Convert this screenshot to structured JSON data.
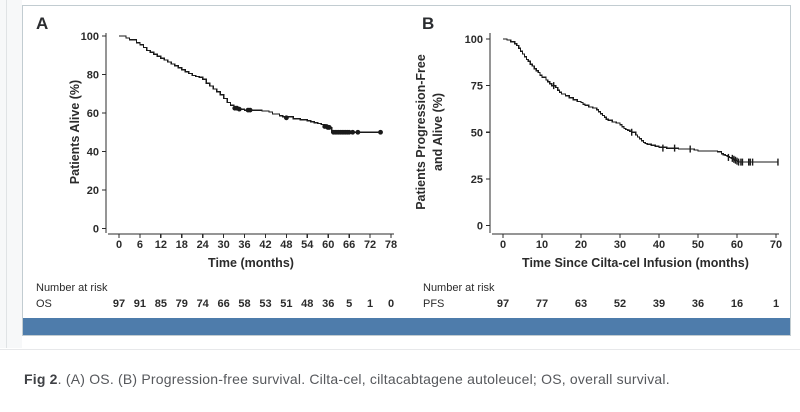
{
  "figure": {
    "caption_bold": "Fig 2",
    "caption_rest": ". (A) OS. (B) Progression-free survival. Cilta-cel, ciltacabtagene autoleucel; OS, overall survival.",
    "accent_bar_color": "#4e7cab",
    "curve_color": "#1a1a1a",
    "axis_color": "#2b2b2b"
  },
  "chart_data": [
    {
      "type": "line",
      "subtype": "kaplan-meier-step",
      "panel_label": "A",
      "xlabel": "Time (months)",
      "ylabel_lines": [
        "Patients Alive (%)"
      ],
      "xlim": [
        0,
        78
      ],
      "ylim": [
        0,
        100
      ],
      "xticks": [
        0,
        6,
        12,
        18,
        24,
        30,
        36,
        42,
        48,
        54,
        60,
        66,
        72,
        78
      ],
      "yticks": [
        0,
        20,
        40,
        60,
        80,
        100
      ],
      "grid": false,
      "legend": "none",
      "risk_header": "Number at risk",
      "risk_label": "OS",
      "risk_counts": [
        97,
        91,
        85,
        79,
        74,
        66,
        58,
        53,
        51,
        48,
        36,
        5,
        1,
        0
      ],
      "censor_style": "dot",
      "steps": [
        [
          0,
          100
        ],
        [
          2,
          99
        ],
        [
          3,
          98
        ],
        [
          5,
          96.5
        ],
        [
          6,
          95.5
        ],
        [
          7,
          94
        ],
        [
          8,
          92.5
        ],
        [
          9,
          91.5
        ],
        [
          10,
          90.5
        ],
        [
          11,
          89.5
        ],
        [
          12,
          88.5
        ],
        [
          13,
          87.5
        ],
        [
          14,
          86.5
        ],
        [
          15,
          85.5
        ],
        [
          16,
          84.5
        ],
        [
          17,
          83.5
        ],
        [
          18,
          82.5
        ],
        [
          19,
          81.5
        ],
        [
          20,
          80.5
        ],
        [
          21,
          79.5
        ],
        [
          22,
          79
        ],
        [
          23,
          78.5
        ],
        [
          24,
          77.5
        ],
        [
          25,
          75.5
        ],
        [
          26,
          74
        ],
        [
          27,
          72.5
        ],
        [
          28,
          71
        ],
        [
          29,
          69.5
        ],
        [
          30,
          67.5
        ],
        [
          31,
          65.5
        ],
        [
          32,
          64
        ],
        [
          33,
          62.5
        ],
        [
          34,
          62
        ],
        [
          36,
          61.5
        ],
        [
          41,
          61
        ],
        [
          43,
          60.5
        ],
        [
          44,
          59.5
        ],
        [
          46,
          58.5
        ],
        [
          47,
          58
        ],
        [
          50,
          57
        ],
        [
          52,
          56.5
        ],
        [
          54,
          56
        ],
        [
          55,
          55.5
        ],
        [
          56,
          55
        ],
        [
          57,
          54.5
        ],
        [
          58,
          54
        ],
        [
          59,
          53
        ],
        [
          60,
          52.5
        ],
        [
          61,
          50
        ],
        [
          75.5,
          50
        ]
      ],
      "censors": [
        [
          33.2,
          62.5
        ],
        [
          33.8,
          62.5
        ],
        [
          34.5,
          62
        ],
        [
          37,
          61.5
        ],
        [
          37.6,
          61.5
        ],
        [
          48,
          57.5
        ],
        [
          59,
          53
        ],
        [
          59.5,
          53
        ],
        [
          59.9,
          52.5
        ],
        [
          60.3,
          52.5
        ],
        [
          61.5,
          50
        ],
        [
          62,
          50
        ],
        [
          62.5,
          50
        ],
        [
          63,
          50
        ],
        [
          63.5,
          50
        ],
        [
          64,
          50
        ],
        [
          64.5,
          50
        ],
        [
          65,
          50
        ],
        [
          65.5,
          50
        ],
        [
          66,
          50
        ],
        [
          67,
          50
        ],
        [
          68.5,
          50
        ],
        [
          75,
          50
        ]
      ]
    },
    {
      "type": "line",
      "subtype": "kaplan-meier-step",
      "panel_label": "B",
      "xlabel": "Time Since Cilta-cel Infusion (months)",
      "ylabel_lines": [
        "Patients Progression-Free",
        "and Alive (%)"
      ],
      "xlim": [
        0,
        70
      ],
      "ylim": [
        0,
        100
      ],
      "xticks": [
        0,
        10,
        20,
        30,
        40,
        50,
        60,
        70
      ],
      "yticks": [
        0,
        25,
        50,
        75,
        100
      ],
      "grid": false,
      "legend": "none",
      "risk_header": "Number at risk",
      "risk_label": "PFS",
      "risk_counts": [
        97,
        77,
        63,
        52,
        39,
        36,
        16,
        1
      ],
      "censor_style": "tick",
      "steps": [
        [
          0,
          100
        ],
        [
          1,
          99.5
        ],
        [
          2,
          98.5
        ],
        [
          3,
          97.5
        ],
        [
          3.5,
          96.5
        ],
        [
          4,
          95
        ],
        [
          4.5,
          93.5
        ],
        [
          5,
          92
        ],
        [
          5.5,
          90.5
        ],
        [
          6,
          89
        ],
        [
          6.5,
          88
        ],
        [
          7,
          86.5
        ],
        [
          7.5,
          85.5
        ],
        [
          8,
          84
        ],
        [
          8.5,
          83
        ],
        [
          9,
          82
        ],
        [
          9.5,
          80.5
        ],
        [
          10,
          79.5
        ],
        [
          11,
          78
        ],
        [
          11.5,
          77
        ],
        [
          12,
          76
        ],
        [
          12.5,
          75
        ],
        [
          13.5,
          74
        ],
        [
          14,
          72.5
        ],
        [
          14.5,
          71.5
        ],
        [
          15,
          70.5
        ],
        [
          16,
          69.5
        ],
        [
          17,
          68.5
        ],
        [
          18,
          67.5
        ],
        [
          19,
          66.5
        ],
        [
          20,
          66
        ],
        [
          20.5,
          65
        ],
        [
          21,
          64.5
        ],
        [
          22,
          63.5
        ],
        [
          23,
          63
        ],
        [
          24,
          62
        ],
        [
          24.5,
          61
        ],
        [
          25,
          60
        ],
        [
          25.5,
          59
        ],
        [
          26,
          58
        ],
        [
          26.5,
          57
        ],
        [
          27,
          56.5
        ],
        [
          28,
          55.5
        ],
        [
          29,
          55
        ],
        [
          30,
          54
        ],
        [
          30.5,
          53
        ],
        [
          31,
          52
        ],
        [
          31.5,
          51.5
        ],
        [
          32,
          51
        ],
        [
          32.5,
          50.5
        ],
        [
          33,
          50
        ],
        [
          34,
          48.5
        ],
        [
          34.5,
          47.5
        ],
        [
          35,
          46.5
        ],
        [
          35.5,
          45.5
        ],
        [
          36,
          44.5
        ],
        [
          36.5,
          44
        ],
        [
          37,
          43.5
        ],
        [
          38,
          43
        ],
        [
          39,
          42.5
        ],
        [
          40,
          42
        ],
        [
          42,
          41.5
        ],
        [
          45,
          41
        ],
        [
          49,
          40.5
        ],
        [
          50,
          40
        ],
        [
          55,
          39.5
        ],
        [
          56,
          38.5
        ],
        [
          56.5,
          38
        ],
        [
          57,
          37.5
        ],
        [
          57.5,
          37
        ],
        [
          58,
          36.5
        ],
        [
          58.5,
          36
        ],
        [
          59,
          35.5
        ],
        [
          59.5,
          35
        ],
        [
          60,
          34.5
        ],
        [
          60.5,
          34
        ],
        [
          70.5,
          34
        ]
      ],
      "censors": [
        [
          13,
          75
        ],
        [
          33,
          50
        ],
        [
          41,
          41.5
        ],
        [
          44,
          41.5
        ],
        [
          48,
          41
        ],
        [
          57.8,
          36.5
        ],
        [
          58.8,
          36
        ],
        [
          59.2,
          35.5
        ],
        [
          59.6,
          35
        ],
        [
          60,
          34.5
        ],
        [
          60.4,
          34
        ],
        [
          61,
          34
        ],
        [
          61.4,
          34
        ],
        [
          63,
          34
        ],
        [
          63.4,
          34
        ],
        [
          64,
          34
        ],
        [
          70.5,
          34
        ]
      ]
    }
  ]
}
